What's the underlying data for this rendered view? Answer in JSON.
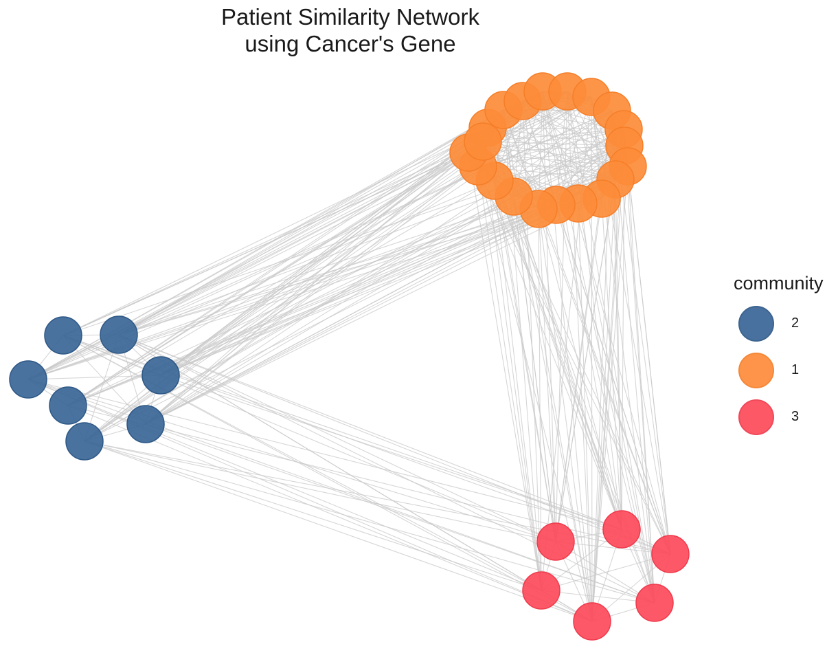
{
  "title_line1": "Patient Similarity Network",
  "title_line2": "using Cancer's Gene",
  "legend": {
    "title": "community",
    "items": [
      {
        "label": "2",
        "color": "#3a6697",
        "stroke": "#2d5785"
      },
      {
        "label": "1",
        "color": "#fd8c3a",
        "stroke": "#f57e28"
      },
      {
        "label": "3",
        "color": "#fd4a5a",
        "stroke": "#ef3a4c"
      }
    ]
  },
  "edge_color": "#c8c8c8",
  "node_opacity": 0.92,
  "communities": [
    {
      "id": "2",
      "color": "#3a6697",
      "stroke": "#2d5785",
      "node_count": 7
    },
    {
      "id": "1",
      "color": "#fd8c3a",
      "stroke": "#f57e28",
      "node_count": 20
    },
    {
      "id": "3",
      "color": "#fd4a5a",
      "stroke": "#ef3a4c",
      "node_count": 6
    }
  ]
}
